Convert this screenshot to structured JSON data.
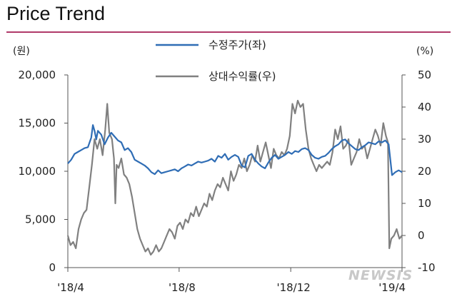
{
  "title": "Price Trend",
  "watermark": "NEWSIS",
  "colors": {
    "title_rule": "#b03a6a",
    "price_line": "#2f6db5",
    "return_line": "#808080",
    "axis": "#555555"
  },
  "chart_data": {
    "type": "line",
    "title": "Price Trend",
    "y_left_unit": "(원)",
    "y_right_unit": "(%)",
    "y_left_range": [
      0,
      20000
    ],
    "y_right_range": [
      -10,
      50
    ],
    "y_left_ticks": [
      "0",
      "5,000",
      "10,000",
      "15,000",
      "20,000"
    ],
    "y_right_ticks": [
      "-10",
      "0",
      "10",
      "20",
      "30",
      "40",
      "50"
    ],
    "x_range": [
      0,
      100
    ],
    "x_ticks": [
      {
        "pos": 0,
        "label": "'18/4"
      },
      {
        "pos": 33.3,
        "label": "'18/8"
      },
      {
        "pos": 66.7,
        "label": "'18/12"
      },
      {
        "pos": 100,
        "label": "'19/4"
      }
    ],
    "legend_position": "top-center",
    "grid": false,
    "series": [
      {
        "name": "수정주가(좌)",
        "axis": "left",
        "points": [
          [
            0,
            10800
          ],
          [
            1,
            11200
          ],
          [
            2,
            11800
          ],
          [
            3,
            12000
          ],
          [
            4,
            12200
          ],
          [
            5,
            12400
          ],
          [
            6,
            12500
          ],
          [
            7,
            13500
          ],
          [
            7.5,
            14800
          ],
          [
            8,
            14200
          ],
          [
            8.5,
            13300
          ],
          [
            9,
            14200
          ],
          [
            10,
            13800
          ],
          [
            11,
            12800
          ],
          [
            12,
            13500
          ],
          [
            13,
            14000
          ],
          [
            14,
            13600
          ],
          [
            15,
            13200
          ],
          [
            16,
            13000
          ],
          [
            17,
            12200
          ],
          [
            18,
            12400
          ],
          [
            19,
            12000
          ],
          [
            20,
            11200
          ],
          [
            21,
            11000
          ],
          [
            22,
            10800
          ],
          [
            23,
            10600
          ],
          [
            24,
            10300
          ],
          [
            25,
            9900
          ],
          [
            26,
            9700
          ],
          [
            27,
            10100
          ],
          [
            28,
            9800
          ],
          [
            29,
            9900
          ],
          [
            30,
            10000
          ],
          [
            31,
            10100
          ],
          [
            32,
            10200
          ],
          [
            33,
            10000
          ],
          [
            34,
            10300
          ],
          [
            35,
            10500
          ],
          [
            36,
            10700
          ],
          [
            37,
            10600
          ],
          [
            38,
            10800
          ],
          [
            39,
            11000
          ],
          [
            40,
            10900
          ],
          [
            41,
            11000
          ],
          [
            42,
            11100
          ],
          [
            43,
            11300
          ],
          [
            44,
            11000
          ],
          [
            45,
            11600
          ],
          [
            46,
            11400
          ],
          [
            47,
            11800
          ],
          [
            48,
            11200
          ],
          [
            49,
            11500
          ],
          [
            50,
            11700
          ],
          [
            51,
            11500
          ],
          [
            52,
            10600
          ],
          [
            53,
            10400
          ],
          [
            54,
            11600
          ],
          [
            55,
            11800
          ],
          [
            56,
            11200
          ],
          [
            57,
            10800
          ],
          [
            58,
            10500
          ],
          [
            59,
            10300
          ],
          [
            60,
            10900
          ],
          [
            61,
            11400
          ],
          [
            62,
            11700
          ],
          [
            63,
            11300
          ],
          [
            64,
            11500
          ],
          [
            65,
            11700
          ],
          [
            66,
            12000
          ],
          [
            67,
            11800
          ],
          [
            68,
            12100
          ],
          [
            69,
            12000
          ],
          [
            70,
            12300
          ],
          [
            71,
            12400
          ],
          [
            72,
            12200
          ],
          [
            73,
            11700
          ],
          [
            74,
            11400
          ],
          [
            75,
            11300
          ],
          [
            76,
            11500
          ],
          [
            77,
            11600
          ],
          [
            78,
            11900
          ],
          [
            79,
            12300
          ],
          [
            80,
            12600
          ],
          [
            81,
            12800
          ],
          [
            82,
            13200
          ],
          [
            83,
            13300
          ],
          [
            84,
            12900
          ],
          [
            85,
            12600
          ],
          [
            86,
            12300
          ],
          [
            87,
            12200
          ],
          [
            88,
            12500
          ],
          [
            89,
            12700
          ],
          [
            90,
            13000
          ],
          [
            91,
            12900
          ],
          [
            92,
            12800
          ],
          [
            93,
            13100
          ],
          [
            94,
            13000
          ],
          [
            95,
            13200
          ],
          [
            96,
            12800
          ],
          [
            97,
            9600
          ],
          [
            98,
            9900
          ],
          [
            99,
            10100
          ],
          [
            100,
            9900
          ]
        ]
      },
      {
        "name": "상대수익률(우)",
        "axis": "right",
        "points": [
          [
            0,
            0
          ],
          [
            0.8,
            -3
          ],
          [
            1.6,
            -2
          ],
          [
            2.4,
            -4
          ],
          [
            3.2,
            2
          ],
          [
            4,
            5
          ],
          [
            4.8,
            7
          ],
          [
            5.6,
            8
          ],
          [
            6.4,
            15
          ],
          [
            7.2,
            22
          ],
          [
            8,
            30
          ],
          [
            8.8,
            27
          ],
          [
            9.6,
            30
          ],
          [
            10.4,
            25
          ],
          [
            11.2,
            33
          ],
          [
            11.8,
            41
          ],
          [
            12.4,
            32
          ],
          [
            13.2,
            30
          ],
          [
            13.8,
            24
          ],
          [
            14.2,
            10
          ],
          [
            14.6,
            22
          ],
          [
            15.2,
            21
          ],
          [
            16,
            24
          ],
          [
            16.8,
            19
          ],
          [
            17.6,
            18
          ],
          [
            18.4,
            16
          ],
          [
            19.2,
            12
          ],
          [
            20,
            7
          ],
          [
            20.8,
            2
          ],
          [
            21.6,
            -1
          ],
          [
            22.4,
            -3
          ],
          [
            23.2,
            -5
          ],
          [
            24,
            -4
          ],
          [
            24.8,
            -6
          ],
          [
            25.6,
            -5
          ],
          [
            26.4,
            -3
          ],
          [
            27.2,
            -5
          ],
          [
            28,
            -4
          ],
          [
            28.8,
            -2
          ],
          [
            29.6,
            0
          ],
          [
            30.4,
            2
          ],
          [
            31.2,
            1
          ],
          [
            32,
            -1
          ],
          [
            32.8,
            3
          ],
          [
            33.6,
            4
          ],
          [
            34.4,
            2
          ],
          [
            35.2,
            5
          ],
          [
            36,
            4
          ],
          [
            36.8,
            7
          ],
          [
            37.6,
            6
          ],
          [
            38.4,
            9
          ],
          [
            39.2,
            6
          ],
          [
            40,
            8
          ],
          [
            40.8,
            10
          ],
          [
            41.6,
            9
          ],
          [
            42.4,
            13
          ],
          [
            43.2,
            11
          ],
          [
            44,
            14
          ],
          [
            44.8,
            16
          ],
          [
            45.6,
            15
          ],
          [
            46.4,
            18
          ],
          [
            47.2,
            16
          ],
          [
            48,
            14
          ],
          [
            48.8,
            20
          ],
          [
            49.6,
            17
          ],
          [
            50.4,
            19
          ],
          [
            51.2,
            22
          ],
          [
            52,
            21
          ],
          [
            52.8,
            24
          ],
          [
            53.6,
            20
          ],
          [
            54.4,
            22
          ],
          [
            55.2,
            25
          ],
          [
            56,
            23
          ],
          [
            56.8,
            28
          ],
          [
            57.6,
            23
          ],
          [
            58.4,
            26
          ],
          [
            59.2,
            29
          ],
          [
            60,
            25
          ],
          [
            60.8,
            21
          ],
          [
            61.6,
            27
          ],
          [
            62.4,
            25
          ],
          [
            63.2,
            24
          ],
          [
            64,
            26
          ],
          [
            64.8,
            25
          ],
          [
            65.6,
            27
          ],
          [
            66.4,
            31
          ],
          [
            67.2,
            41
          ],
          [
            68,
            38
          ],
          [
            68.8,
            42
          ],
          [
            69.6,
            40
          ],
          [
            70.4,
            41
          ],
          [
            71.2,
            33
          ],
          [
            72,
            27
          ],
          [
            72.8,
            24
          ],
          [
            73.6,
            22
          ],
          [
            74.4,
            20
          ],
          [
            75.2,
            22
          ],
          [
            76,
            21
          ],
          [
            76.8,
            22
          ],
          [
            77.6,
            23
          ],
          [
            78.4,
            22
          ],
          [
            79.2,
            26
          ],
          [
            80,
            33
          ],
          [
            80.8,
            30
          ],
          [
            81.6,
            34
          ],
          [
            82.4,
            27
          ],
          [
            83.2,
            28
          ],
          [
            84,
            30
          ],
          [
            84.8,
            22
          ],
          [
            85.6,
            24
          ],
          [
            86.4,
            26
          ],
          [
            87.2,
            30
          ],
          [
            88,
            27
          ],
          [
            88.8,
            28
          ],
          [
            89.6,
            24
          ],
          [
            90.4,
            27
          ],
          [
            91.2,
            30
          ],
          [
            92,
            33
          ],
          [
            92.8,
            31
          ],
          [
            93.6,
            28
          ],
          [
            94.4,
            35
          ],
          [
            95.2,
            31
          ],
          [
            95.8,
            29
          ],
          [
            96.2,
            -4
          ],
          [
            96.8,
            -1
          ],
          [
            97.6,
            0
          ],
          [
            98.4,
            2
          ],
          [
            99.2,
            -1
          ],
          [
            100,
            0
          ]
        ]
      }
    ]
  }
}
